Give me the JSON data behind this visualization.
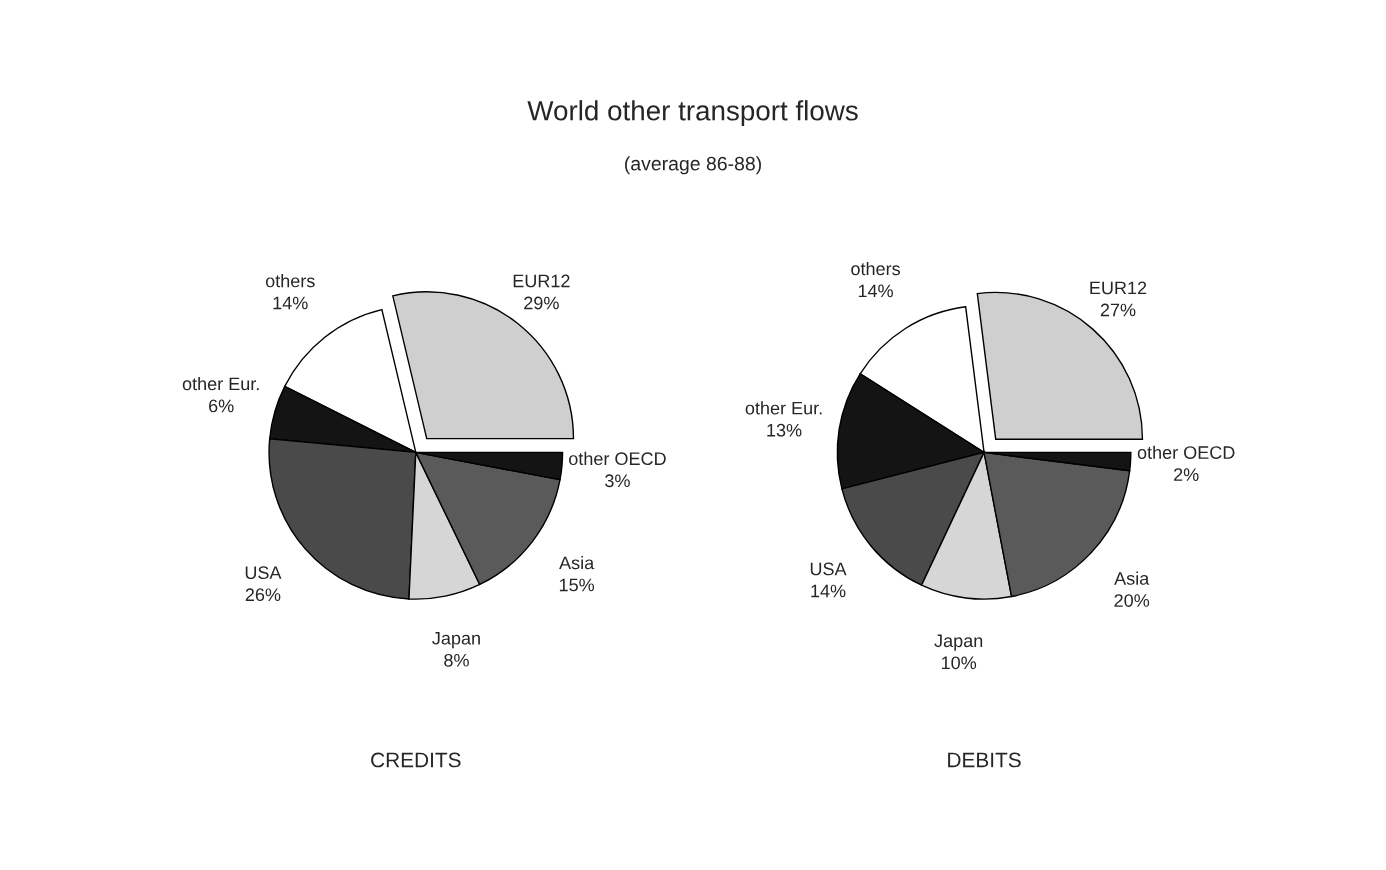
{
  "chart_data": [
    {
      "type": "pie",
      "title": "World other transport flows",
      "subtitle": "(average 86-88)",
      "xlabel": "CREDITS",
      "categories": [
        "EUR12",
        "others",
        "other Eur.",
        "USA",
        "Japan",
        "Asia",
        "other OECD"
      ],
      "values": [
        29,
        14,
        6,
        26,
        8,
        15,
        3
      ],
      "value_labels": [
        "29%",
        "14%",
        "6%",
        "26%",
        "8%",
        "15%",
        "3%"
      ],
      "colors": [
        "#cfcfcf",
        "#ffffff",
        "#141414",
        "#4a4a4a",
        "#d6d6d6",
        "#5a5a5a",
        "#141414"
      ]
    },
    {
      "type": "pie",
      "xlabel": "DEBITS",
      "categories": [
        "EUR12",
        "others",
        "other Eur.",
        "USA",
        "Japan",
        "Asia",
        "other OECD"
      ],
      "values": [
        27,
        14,
        13,
        14,
        10,
        20,
        2
      ],
      "value_labels": [
        "27%",
        "14%",
        "13%",
        "14%",
        "10%",
        "20%",
        "2%"
      ],
      "colors": [
        "#cfcfcf",
        "#ffffff",
        "#141414",
        "#4a4a4a",
        "#d6d6d6",
        "#5a5a5a",
        "#141414"
      ]
    }
  ]
}
